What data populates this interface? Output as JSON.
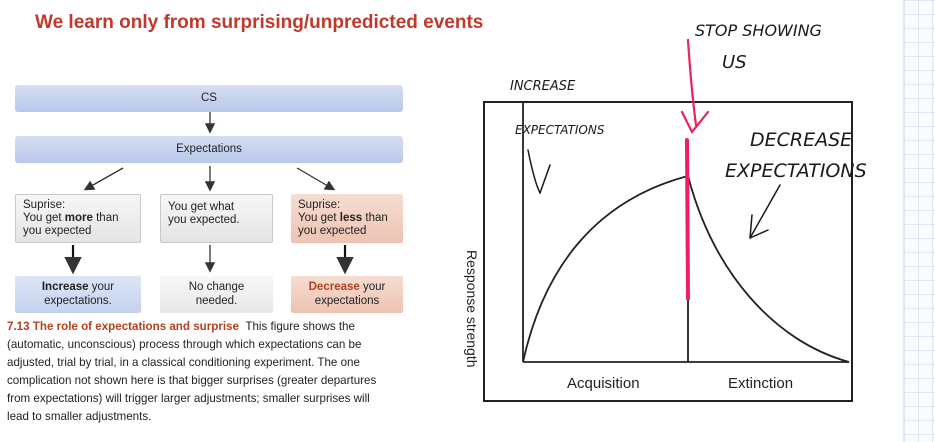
{
  "slide_title": "We learn only from surprising/unpredicted events",
  "flowchart": {
    "cs": "CS",
    "expectations": "Expectations",
    "surprise_more": {
      "pre": "Suprise:\nYou get ",
      "bold": "more",
      "post": " than\nyou expected"
    },
    "as_expected": "You get what\nyou expected.",
    "surprise_less": {
      "pre": "Suprise:\nYou get ",
      "bold": "less",
      "post": " than\nyou expected"
    },
    "increase": {
      "bold": "Increase",
      "rest": " your\nexpectations."
    },
    "no_change": "No change\nneeded.",
    "decrease": {
      "bold": "Decrease",
      "rest": " your\nexpectations"
    }
  },
  "caption": {
    "label": "7.13 The role of expectations and surprise",
    "text": "This figure shows the (automatic, unconscious) process through which expectations can be adjusted, trial by trial, in a classical conditioning experiment. The one complication not shown here is that bigger surprises (greater departures from expectations) will trigger larger adjustments; smaller surprises will lead to smaller adjustments."
  },
  "graph": {
    "ylabel": "Response strength",
    "xlabel_left": "Acquisition",
    "xlabel_right": "Extinction"
  },
  "annotations": {
    "stop": [
      "STOP SHOWING",
      "US"
    ],
    "increase": [
      "INCREASE",
      "EXPECTATIONS"
    ],
    "decrease": [
      "DECREASE",
      "EXPECTATIONS"
    ],
    "ink_color": "#1a1a1a",
    "highlight_color": "#e8245a"
  }
}
